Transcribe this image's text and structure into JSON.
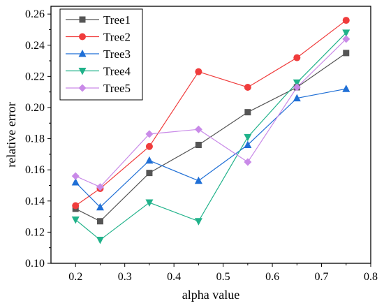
{
  "chart_data": {
    "type": "line",
    "title": "",
    "xlabel": "alpha value",
    "ylabel": "relative error",
    "xlim": [
      0.15,
      0.8
    ],
    "ylim": [
      0.1,
      0.265
    ],
    "xticks": [
      0.2,
      0.3,
      0.4,
      0.5,
      0.6,
      0.7,
      0.8
    ],
    "xtick_labels": [
      "0.2",
      "0.3",
      "0.4",
      "0.5",
      "0.6",
      "0.7",
      "0.8"
    ],
    "yticks": [
      0.1,
      0.12,
      0.14,
      0.16,
      0.18,
      0.2,
      0.22,
      0.24,
      0.26
    ],
    "ytick_labels": [
      "0.10",
      "0.12",
      "0.14",
      "0.16",
      "0.18",
      "0.20",
      "0.22",
      "0.24",
      "0.26"
    ],
    "grid": false,
    "legend_position": "top-left",
    "x": [
      0.2,
      0.25,
      0.35,
      0.45,
      0.55,
      0.65,
      0.75
    ],
    "series": [
      {
        "name": "Tree1",
        "color": "#555555",
        "marker": "square",
        "values": [
          0.135,
          0.127,
          0.158,
          0.176,
          0.197,
          0.213,
          0.235
        ]
      },
      {
        "name": "Tree2",
        "color": "#f03c3c",
        "marker": "circle",
        "values": [
          0.137,
          0.148,
          0.175,
          0.223,
          0.213,
          0.232,
          0.256
        ]
      },
      {
        "name": "Tree3",
        "color": "#1f6fd6",
        "marker": "triangle-up",
        "values": [
          0.152,
          0.136,
          0.166,
          0.153,
          0.176,
          0.206,
          0.212
        ]
      },
      {
        "name": "Tree4",
        "color": "#20b28a",
        "marker": "triangle-down",
        "values": [
          0.128,
          0.115,
          0.139,
          0.127,
          0.181,
          0.216,
          0.248
        ]
      },
      {
        "name": "Tree5",
        "color": "#c98ae8",
        "marker": "diamond",
        "values": [
          0.156,
          0.149,
          0.183,
          0.186,
          0.165,
          0.213,
          0.244
        ]
      }
    ]
  }
}
